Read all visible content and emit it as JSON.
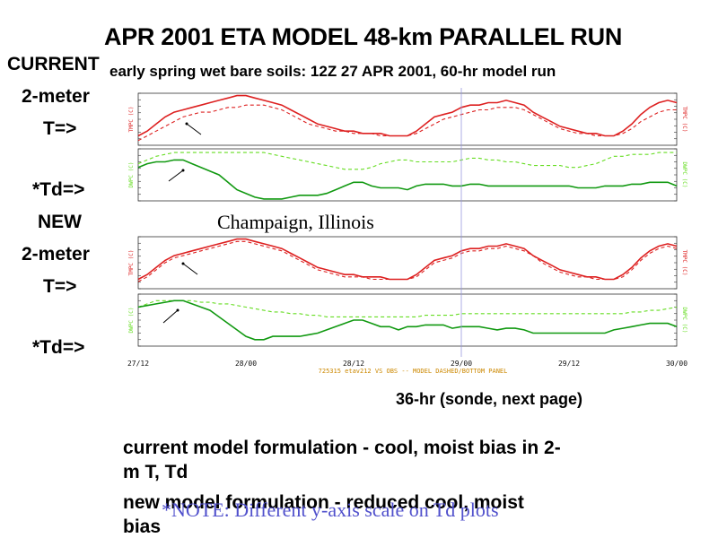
{
  "slide": {
    "title": "APR 2001 ETA MODEL 48-km PARALLEL RUN",
    "subtitle": "early spring wet bare soils:  12Z 27 APR 2001, 60-hr model run",
    "side_current": "CURRENT",
    "side_2meter_a": "2-meter",
    "side_T_a": "T=>",
    "side_Td_a": "*Td=>",
    "side_new": "NEW",
    "side_2meter_b": "2-meter",
    "side_T_b": "T=>",
    "side_Td_b": "*Td=>",
    "location": "Champaign, Illinois",
    "sonde_note": "36-hr (sonde, next page)",
    "bottom_line1": "current model formulation -  cool, moist bias in 2-",
    "bottom_line2": "m T, Td",
    "bottom_line3": "new model formulation -  reduced cool, moist",
    "bottom_line4": "bias",
    "overlay_note": "*NOTE: Different y-axis scale on Td plots",
    "panel_footer": "725315  etav212 VS OBS -- MODEL DASHED/BOTTOM PANEL"
  },
  "colors": {
    "temperature": "#dd2020",
    "dewpoint_model": "#66dd22",
    "dewpoint_obs": "#119911",
    "axis": "#333333",
    "vline": "#9999dd",
    "note": "#5050cc"
  },
  "chart_data": [
    {
      "type": "line",
      "panel": "current-T",
      "ylabel": "TMPC (C)",
      "x": [
        0,
        1,
        2,
        3,
        4,
        5,
        6,
        7,
        8,
        9,
        10,
        11,
        12,
        13,
        14,
        15,
        16,
        17,
        18,
        19,
        20,
        21,
        22,
        23,
        24,
        25,
        26,
        27,
        28,
        29,
        30,
        31,
        32,
        33,
        34,
        35,
        36,
        37,
        38,
        39,
        40,
        41,
        42,
        43,
        44,
        45,
        46,
        47,
        48,
        49,
        50,
        51,
        52,
        53,
        54,
        55,
        56,
        57,
        58,
        59,
        60
      ],
      "ylim": [
        6,
        28
      ],
      "series": [
        {
          "style": "solid",
          "values": [
            10,
            12,
            15,
            18,
            20,
            21,
            22,
            23,
            24,
            25,
            26,
            27,
            27,
            26,
            25,
            24,
            23,
            21,
            19,
            17,
            15,
            14,
            13,
            12,
            12,
            11,
            11,
            11,
            10,
            10,
            10,
            12,
            15,
            18,
            19,
            20,
            22,
            23,
            23,
            24,
            24,
            25,
            24,
            23,
            20,
            18,
            16,
            14,
            13,
            12,
            11,
            11,
            10,
            10,
            12,
            15,
            19,
            22,
            24,
            25,
            24
          ]
        },
        {
          "style": "dashed",
          "values": [
            8,
            10,
            12,
            14,
            16,
            18,
            19,
            20,
            20,
            21,
            22,
            22,
            23,
            23,
            23,
            22,
            21,
            19,
            17,
            15,
            14,
            13,
            12,
            12,
            11,
            11,
            11,
            10,
            10,
            10,
            10,
            11,
            13,
            15,
            17,
            18,
            19,
            20,
            21,
            21,
            22,
            22,
            22,
            21,
            19,
            17,
            15,
            13,
            12,
            11,
            11,
            10,
            10,
            10,
            11,
            13,
            16,
            18,
            20,
            21,
            21
          ]
        }
      ]
    },
    {
      "type": "line",
      "panel": "current-Td",
      "ylabel": "DWPC (C)",
      "x": [
        0,
        1,
        2,
        3,
        4,
        5,
        6,
        7,
        8,
        9,
        10,
        11,
        12,
        13,
        14,
        15,
        16,
        17,
        18,
        19,
        20,
        21,
        22,
        23,
        24,
        25,
        26,
        27,
        28,
        29,
        30,
        31,
        32,
        33,
        34,
        35,
        36,
        37,
        38,
        39,
        40,
        41,
        42,
        43,
        44,
        45,
        46,
        47,
        48,
        49,
        50,
        51,
        52,
        53,
        54,
        55,
        56,
        57,
        58,
        59,
        60
      ],
      "ylim": [
        0,
        14
      ],
      "series": [
        {
          "style": "dashed",
          "values": [
            10,
            11,
            12,
            12.5,
            13,
            13,
            13,
            13,
            13,
            13,
            13,
            13,
            13,
            13,
            13,
            12.5,
            12,
            11.5,
            11,
            10.5,
            10,
            9.5,
            9,
            8.5,
            8.5,
            8.5,
            9,
            10,
            10.5,
            11,
            11,
            10.5,
            10.5,
            10.5,
            10.5,
            10.5,
            11,
            11.5,
            11.5,
            11,
            11,
            10.5,
            10.5,
            10,
            9.5,
            9.5,
            9.5,
            9.5,
            9,
            9,
            9.5,
            10,
            11,
            12,
            12,
            12.5,
            12.5,
            12.5,
            13,
            13,
            13
          ]
        },
        {
          "style": "solid",
          "values": [
            9,
            10,
            10.5,
            10.5,
            11,
            11,
            10,
            9,
            8,
            7,
            5,
            3,
            2,
            1,
            0.5,
            0.5,
            0.5,
            1,
            1.5,
            1.5,
            1.5,
            2,
            3,
            4,
            5,
            5,
            4,
            3.5,
            3.5,
            3.5,
            3,
            4,
            4.5,
            4.5,
            4.5,
            4,
            4,
            4.5,
            4.5,
            4,
            4,
            4,
            4,
            4,
            4,
            4,
            4,
            4,
            4,
            3.5,
            3.5,
            3.5,
            4,
            4,
            4,
            4.5,
            4.5,
            5,
            5,
            5,
            4
          ]
        }
      ]
    },
    {
      "type": "line",
      "panel": "new-T",
      "ylabel": "TMPC (C)",
      "x": [
        0,
        1,
        2,
        3,
        4,
        5,
        6,
        7,
        8,
        9,
        10,
        11,
        12,
        13,
        14,
        15,
        16,
        17,
        18,
        19,
        20,
        21,
        22,
        23,
        24,
        25,
        26,
        27,
        28,
        29,
        30,
        31,
        32,
        33,
        34,
        35,
        36,
        37,
        38,
        39,
        40,
        41,
        42,
        43,
        44,
        45,
        46,
        47,
        48,
        49,
        50,
        51,
        52,
        53,
        54,
        55,
        56,
        57,
        58,
        59,
        60
      ],
      "ylim": [
        6,
        28
      ],
      "series": [
        {
          "style": "solid",
          "values": [
            10,
            12,
            15,
            18,
            20,
            21,
            22,
            23,
            24,
            25,
            26,
            27,
            27,
            26,
            25,
            24,
            23,
            21,
            19,
            17,
            15,
            14,
            13,
            12,
            12,
            11,
            11,
            11,
            10,
            10,
            10,
            12,
            15,
            18,
            19,
            20,
            22,
            23,
            23,
            24,
            24,
            25,
            24,
            23,
            20,
            18,
            16,
            14,
            13,
            12,
            11,
            11,
            10,
            10,
            12,
            15,
            19,
            22,
            24,
            25,
            24
          ]
        },
        {
          "style": "dashed",
          "values": [
            9,
            11,
            14,
            17,
            19,
            20,
            21,
            22,
            23,
            24,
            25,
            26,
            26,
            25,
            24,
            23,
            22,
            20,
            18,
            16,
            14,
            13,
            12,
            11,
            11,
            11,
            10,
            10,
            10,
            10,
            10,
            11,
            14,
            17,
            18,
            19,
            21,
            22,
            22,
            23,
            23,
            24,
            23,
            22,
            20,
            17,
            15,
            13,
            12,
            11,
            11,
            10,
            10,
            10,
            11,
            14,
            18,
            21,
            23,
            24,
            23
          ]
        }
      ]
    },
    {
      "type": "line",
      "panel": "new-Td",
      "ylabel": "DWPC (C)",
      "x": [
        0,
        1,
        2,
        3,
        4,
        5,
        6,
        7,
        8,
        9,
        10,
        11,
        12,
        13,
        14,
        15,
        16,
        17,
        18,
        19,
        20,
        21,
        22,
        23,
        24,
        25,
        26,
        27,
        28,
        29,
        30,
        31,
        32,
        33,
        34,
        35,
        36,
        37,
        38,
        39,
        40,
        41,
        42,
        43,
        44,
        45,
        46,
        47,
        48,
        49,
        50,
        51,
        52,
        53,
        54,
        55,
        56,
        57,
        58,
        59,
        60
      ],
      "ylim": [
        -4,
        12
      ],
      "series": [
        {
          "style": "dashed",
          "values": [
            8,
            9,
            10,
            10,
            10,
            10,
            10,
            9.5,
            9.5,
            9,
            9,
            8.5,
            8,
            7.5,
            7,
            6.5,
            6.5,
            6,
            6,
            5.5,
            5.5,
            5,
            5,
            5,
            5,
            5,
            5,
            5,
            5,
            5,
            5,
            5,
            5.5,
            5.5,
            5.5,
            5.5,
            6,
            6,
            6,
            6,
            6,
            6,
            6,
            6,
            6,
            6,
            6,
            6,
            6,
            6,
            6,
            6,
            6,
            6,
            6,
            6.5,
            6.5,
            7,
            7,
            7.5,
            8
          ]
        },
        {
          "style": "solid",
          "values": [
            8,
            8.5,
            9,
            9.5,
            10,
            10,
            9,
            8,
            7,
            5,
            3,
            1,
            -1,
            -2,
            -2,
            -1,
            -1,
            -1,
            -1,
            -0.5,
            0,
            1,
            2,
            3,
            4,
            4,
            3,
            2,
            2,
            1,
            2,
            2,
            2.5,
            2.5,
            2.5,
            1.5,
            2,
            2,
            2,
            1.5,
            1,
            1.5,
            1.5,
            1,
            0,
            0,
            0,
            0,
            0,
            0,
            0,
            0,
            0,
            1,
            1.5,
            2,
            2.5,
            3,
            3,
            3,
            2
          ]
        }
      ]
    }
  ],
  "time_axis": {
    "tick_labels": [
      "27/12",
      "28/00",
      "28/12",
      "29/00",
      "29/12",
      "30/00"
    ],
    "tick_hours": [
      0,
      12,
      24,
      36,
      48,
      60
    ],
    "sonde_hour": 36
  }
}
